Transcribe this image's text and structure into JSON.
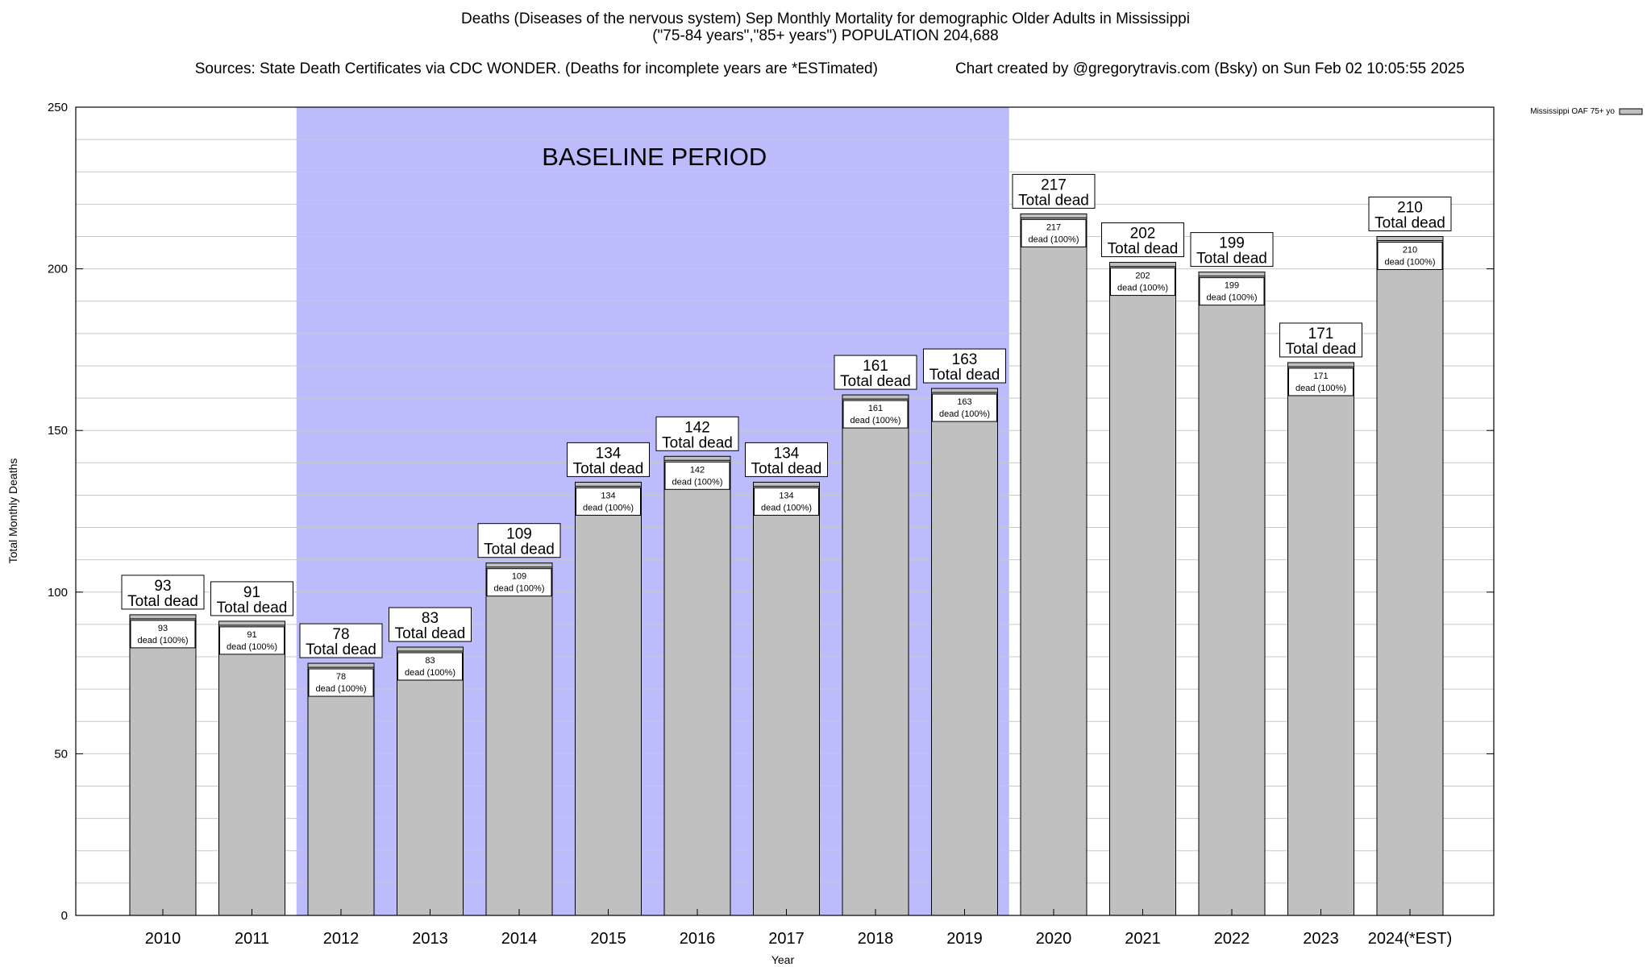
{
  "header": {
    "title_line1": "Deaths (Diseases of the nervous system) Sep Monthly Mortality for demographic Older Adults in Mississippi",
    "title_line2": "(\"75-84 years\",\"85+ years\") POPULATION 204,688",
    "title_line3_left": "Sources: State Death Certificates via CDC WONDER. (Deaths for incomplete years are *ESTimated)",
    "title_line3_right": "Chart created by @gregorytravis.com (Bsky) on Sun Feb 02 10:05:55 2025"
  },
  "legend": {
    "label": "Mississippi OAF 75+ yo"
  },
  "baseline": {
    "label": "BASELINE PERIOD",
    "color": "#bcbcfc",
    "start_index": 2,
    "end_index": 9
  },
  "colors": {
    "bar_fill": "#c0c0c0",
    "grid": "#c8c8c8"
  },
  "chart_data": {
    "type": "bar",
    "xlabel": "Year",
    "ylabel": "Total Monthly Deaths",
    "ylim": [
      0,
      250
    ],
    "yticks": [
      0,
      50,
      100,
      150,
      200,
      250
    ],
    "categories": [
      "2010",
      "2011",
      "2012",
      "2013",
      "2014",
      "2015",
      "2016",
      "2017",
      "2018",
      "2019",
      "2020",
      "2021",
      "2022",
      "2023",
      "2024(*EST)"
    ],
    "series": [
      {
        "name": "Mississippi OAF 75+ yo",
        "values": [
          93,
          91,
          78,
          83,
          109,
          134,
          142,
          134,
          161,
          163,
          217,
          202,
          199,
          171,
          210
        ]
      }
    ],
    "total_label": "Total dead",
    "inner_label": "dead (100%)",
    "grid": true,
    "legend_position": "top-right"
  }
}
